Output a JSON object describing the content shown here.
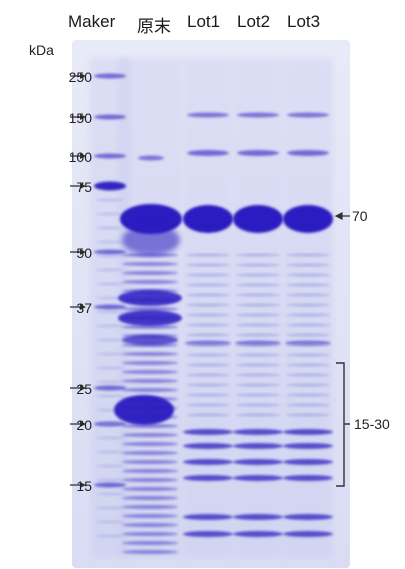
{
  "figure": {
    "lane_headers": [
      "Maker",
      "原末",
      "Lot1",
      "Lot2",
      "Lot3"
    ],
    "unit_label": "kDa",
    "marker_labels": [
      "250",
      "150",
      "100",
      "75",
      "50",
      "37",
      "25",
      "20",
      "15"
    ],
    "annotations": {
      "band_70_label": "70",
      "range_label": "15-30"
    },
    "colors": {
      "gel_background": "#dfe2f6",
      "band_dark": "#2a1fc0",
      "band_light": "#8f94dc"
    }
  }
}
